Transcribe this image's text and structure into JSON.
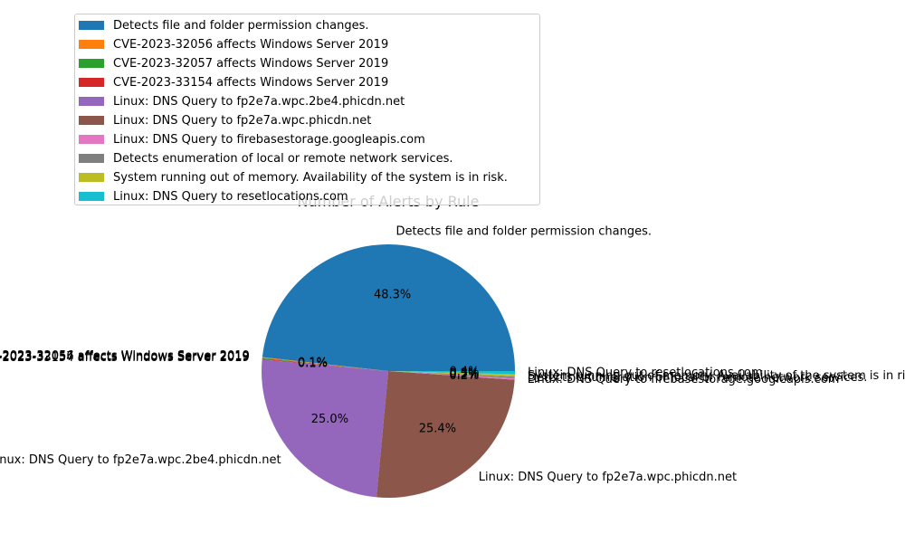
{
  "chart_data": {
    "type": "pie",
    "title": "Number of Alerts by Rule",
    "legend_position": "upper-left",
    "slices": [
      {
        "label": "Detects file and folder permission changes.",
        "value": 48.3,
        "pct_label": "48.3%",
        "color": "#1f77b4"
      },
      {
        "label": "CVE-2023-32056 affects Windows Server 2019",
        "value": 0.1,
        "pct_label": "0.1%",
        "color": "#ff7f0e"
      },
      {
        "label": "CVE-2023-32057 affects Windows Server 2019",
        "value": 0.1,
        "pct_label": "0.1%",
        "color": "#2ca02c"
      },
      {
        "label": "CVE-2023-33154 affects Windows Server 2019",
        "value": 0.1,
        "pct_label": "0.1%",
        "color": "#d62728"
      },
      {
        "label": "Linux: DNS Query to fp2e7a.wpc.2be4.phicdn.net",
        "value": 25.0,
        "pct_label": "25.0%",
        "color": "#9467bd"
      },
      {
        "label": "Linux: DNS Query to fp2e7a.wpc.phicdn.net",
        "value": 25.4,
        "pct_label": "25.4%",
        "color": "#8c564b"
      },
      {
        "label": "Linux: DNS Query to firebasestorage.googleapis.com",
        "value": 0.2,
        "pct_label": "0.2%",
        "color": "#e377c2"
      },
      {
        "label": "Detects enumeration of local or remote network services.",
        "value": 0.2,
        "pct_label": "0.2%",
        "color": "#7f7f7f"
      },
      {
        "label": "System running out of memory. Availability of the system is in risk.",
        "value": 0.3,
        "pct_label": "0.3%",
        "color": "#bcbd22"
      },
      {
        "label": "Linux: DNS Query to resetlocations.com",
        "value": 0.4,
        "pct_label": "0.4%",
        "color": "#17becf"
      }
    ]
  }
}
